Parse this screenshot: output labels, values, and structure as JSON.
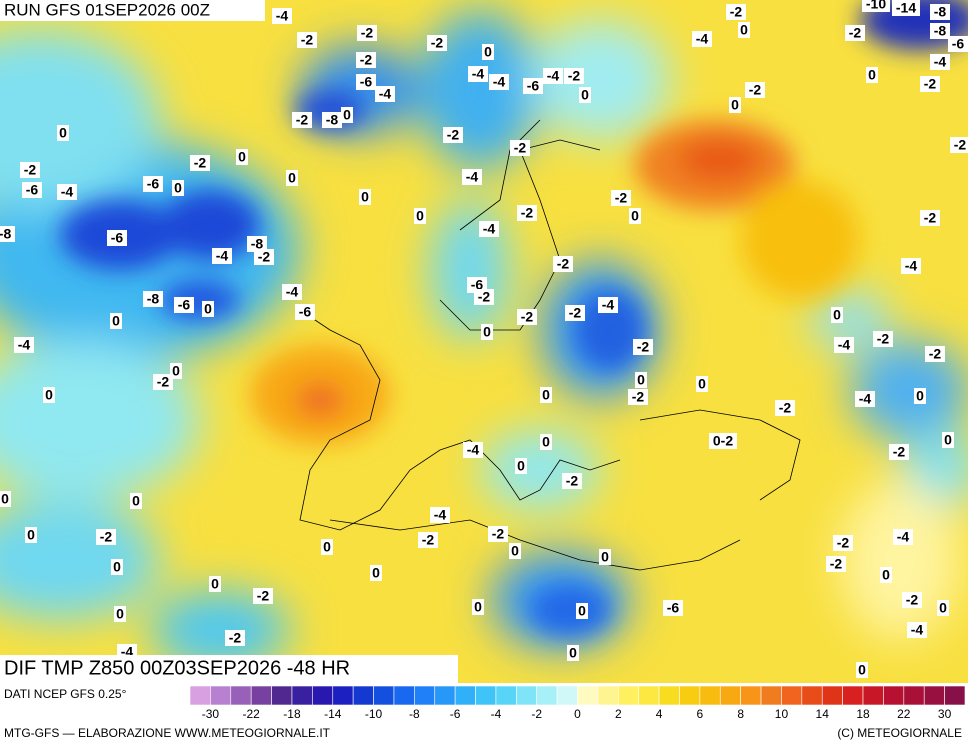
{
  "header": {
    "run": "RUN GFS 01SEP2026 00Z",
    "field": "DIF TMP Z850 00Z03SEP2026 -48 HR"
  },
  "footer": {
    "source": "DATI NCEP GFS 0.25°",
    "credit_left": "MTG-GFS — ELABORAZIONE WWW.METEOGIORNALE.IT",
    "credit_right": "(C) METEOGIORNALE"
  },
  "colorbar": {
    "colors": [
      "#d8a0e0",
      "#b880d0",
      "#9860b8",
      "#7840a0",
      "#502890",
      "#3820a0",
      "#2818b0",
      "#1c20c0",
      "#1438d0",
      "#1450e0",
      "#1868f0",
      "#2080f8",
      "#2898f8",
      "#30b0f8",
      "#40c4f8",
      "#58d4f8",
      "#80e4f8",
      "#a8f0f8",
      "#d0f8f8",
      "#fffac0",
      "#fff590",
      "#fff060",
      "#fce840",
      "#f8dc20",
      "#f8cc10",
      "#f8bc10",
      "#f8a810",
      "#f89418",
      "#f07c20",
      "#f06420",
      "#e84c18",
      "#e03418",
      "#d82020",
      "#c81828",
      "#b81030",
      "#a81038",
      "#981040",
      "#881048"
    ],
    "labels": [
      -30,
      -22,
      -18,
      -14,
      -10,
      -8,
      -6,
      -4,
      -2,
      0,
      2,
      4,
      6,
      8,
      10,
      14,
      18,
      22,
      30
    ]
  },
  "contour_labels": [
    -4,
    -2,
    0,
    -10,
    -14,
    -8,
    -2,
    -8,
    -6,
    -2,
    -2,
    -2,
    0,
    -4,
    -4,
    -2,
    -6,
    -4,
    -4,
    -4,
    -6,
    -4,
    -2,
    0,
    0,
    -2,
    0,
    -2,
    -2,
    -8,
    0,
    0,
    -2,
    -2,
    -2,
    -2,
    0,
    -2,
    0,
    -4,
    -6,
    -4,
    -6,
    0,
    0,
    -2,
    -2,
    0,
    0,
    -2,
    -4,
    -8,
    -6,
    -8,
    -4,
    -2,
    -2,
    -4,
    -6,
    -2,
    -4,
    -8,
    -6,
    0,
    -6,
    -4,
    -2,
    -2,
    0,
    0,
    0,
    -4,
    -2,
    -4,
    -2,
    -2,
    0,
    -2,
    0,
    0,
    0,
    0,
    -2,
    -4,
    0,
    -2,
    0,
    "0-2",
    0,
    -4,
    -2,
    0,
    -2,
    0,
    0,
    -4,
    0,
    -2,
    -2,
    -2,
    -4,
    0,
    0,
    -2,
    0,
    -2,
    0,
    0,
    0,
    0,
    -2,
    -2,
    0,
    -6,
    0,
    0,
    0,
    -4,
    -2,
    -4,
    0,
    0
  ]
}
